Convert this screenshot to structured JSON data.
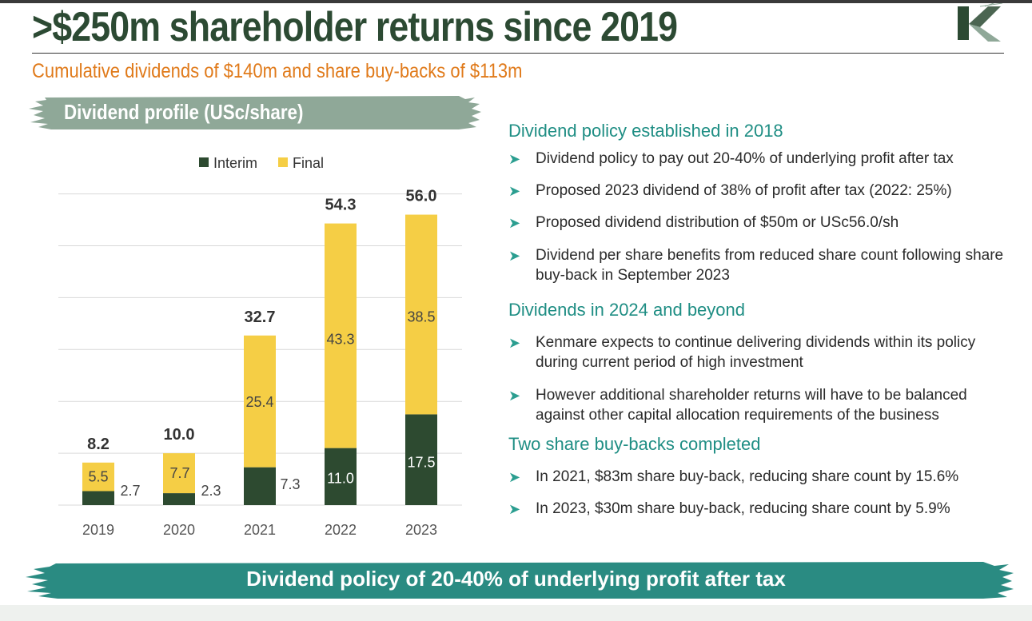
{
  "slide": {
    "title": ">$250m shareholder returns since 2019",
    "subtitle": "Cumulative dividends of $140m and share buy-backs of $113m",
    "chart_heading": "Dividend profile (USc/share)",
    "banner": "Dividend policy of 20-40% of underlying profit after tax"
  },
  "colors": {
    "title": "#2c4a33",
    "subtitle": "#e07a1a",
    "interim": "#2d4a30",
    "final": "#f5ce45",
    "heading_brush": "#8fa898",
    "banner_brush": "#2a8b82",
    "section_title": "#1f8e84"
  },
  "chart_data": {
    "type": "bar",
    "stacked": true,
    "categories": [
      "2019",
      "2020",
      "2021",
      "2022",
      "2023"
    ],
    "series": [
      {
        "name": "Interim",
        "values": [
          2.7,
          2.3,
          7.3,
          11.0,
          17.5
        ],
        "labels": [
          "2.7",
          "2.3",
          "7.3",
          "11.0",
          "17.5"
        ],
        "color": "#2d4a30"
      },
      {
        "name": "Final",
        "values": [
          5.5,
          7.7,
          25.4,
          43.3,
          38.5
        ],
        "labels": [
          "5.5",
          "7.7",
          "25.4",
          "43.3",
          "38.5"
        ],
        "color": "#f5ce45"
      }
    ],
    "totals": [
      "8.2",
      "10.0",
      "32.7",
      "54.3",
      "56.0"
    ],
    "ylim": [
      0,
      60
    ],
    "grid": true,
    "legend": "top"
  },
  "right": {
    "sections": [
      {
        "title": "Dividend policy established in 2018",
        "bullets": [
          "Dividend policy to pay out 20-40% of underlying profit after tax",
          "Proposed 2023 dividend of 38% of profit after tax (2022: 25%)",
          "Proposed dividend distribution of $50m or USc56.0/sh",
          "Dividend per share benefits from reduced share count following share buy-back in September 2023"
        ]
      },
      {
        "title": "Dividends in 2024 and beyond",
        "bullets": [
          "Kenmare expects to continue delivering dividends within its policy during current period of high investment",
          "However additional shareholder returns will have to be balanced against other capital allocation requirements of the business"
        ]
      },
      {
        "title": "Two share buy-backs completed",
        "bullets": [
          "In 2021, $83m share buy-back, reducing share count by 15.6%",
          "In 2023, $30m share buy-back, reducing share count by 5.9%"
        ]
      }
    ]
  }
}
